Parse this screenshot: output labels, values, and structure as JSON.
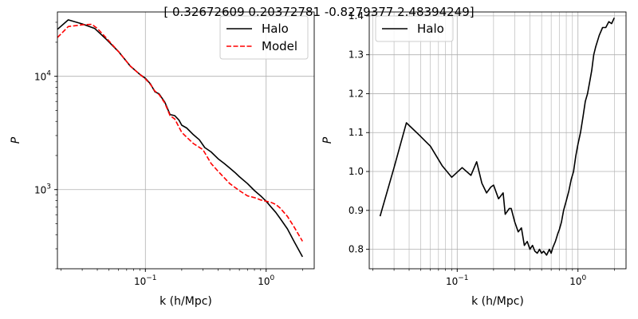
{
  "figure": {
    "suptitle": "[ 0.32672609  0.20372781 -0.8279377   2.48394249]"
  },
  "chart_data": [
    {
      "type": "line",
      "xlabel": "k (h/Mpc)",
      "ylabel": "P",
      "xscale": "log",
      "yscale": "log",
      "xlim": [
        0.0187,
        2.5
      ],
      "ylim": [
        200,
        37000
      ],
      "x_ticks": [
        {
          "value": 0.1,
          "base": "10",
          "exp": "−1"
        },
        {
          "value": 1,
          "base": "10",
          "exp": "0"
        }
      ],
      "y_ticks": [
        {
          "value": 1000,
          "base": "10",
          "exp": "3"
        },
        {
          "value": 10000,
          "base": "10",
          "exp": "4"
        }
      ],
      "grid": true,
      "legend": {
        "position": "top-right",
        "labels": [
          "Halo",
          "Model"
        ]
      },
      "series": [
        {
          "name": "Halo",
          "color": "#000000",
          "dash": "solid",
          "x": [
            0.0187,
            0.023,
            0.03,
            0.038,
            0.048,
            0.06,
            0.075,
            0.09,
            0.1,
            0.11,
            0.12,
            0.13,
            0.145,
            0.16,
            0.175,
            0.19,
            0.2,
            0.22,
            0.25,
            0.28,
            0.31,
            0.35,
            0.4,
            0.45,
            0.5,
            0.55,
            0.6,
            0.7,
            0.8,
            0.9,
            1.0,
            1.1,
            1.2,
            1.3,
            1.5,
            1.7,
            2.0
          ],
          "y": [
            26000,
            31500,
            29000,
            26500,
            21000,
            16500,
            12300,
            10400,
            9600,
            8600,
            7300,
            7000,
            5900,
            4600,
            4500,
            4100,
            3700,
            3500,
            3050,
            2750,
            2350,
            2150,
            1870,
            1700,
            1550,
            1420,
            1300,
            1130,
            980,
            880,
            790,
            700,
            630,
            560,
            450,
            350,
            255
          ]
        },
        {
          "name": "Model",
          "color": "#ff0000",
          "dash": "dashed",
          "x": [
            0.0187,
            0.023,
            0.03,
            0.036,
            0.04,
            0.048,
            0.06,
            0.075,
            0.09,
            0.1,
            0.11,
            0.12,
            0.13,
            0.145,
            0.16,
            0.175,
            0.2,
            0.22,
            0.25,
            0.3,
            0.35,
            0.4,
            0.5,
            0.6,
            0.7,
            0.8,
            0.9,
            1.0,
            1.1,
            1.2,
            1.3,
            1.5,
            1.7,
            2.0
          ],
          "y": [
            22000,
            27500,
            28500,
            28800,
            26500,
            21500,
            16500,
            12300,
            10400,
            9500,
            8500,
            7400,
            6900,
            5800,
            4500,
            4200,
            3200,
            2900,
            2550,
            2250,
            1700,
            1450,
            1130,
            980,
            880,
            850,
            810,
            790,
            770,
            740,
            690,
            580,
            470,
            350
          ]
        }
      ]
    },
    {
      "type": "line",
      "xlabel": "k (h/Mpc)",
      "ylabel": "P",
      "xscale": "log",
      "yscale": "linear",
      "xlim": [
        0.0187,
        2.5
      ],
      "ylim": [
        0.75,
        1.41
      ],
      "x_ticks": [
        {
          "value": 0.1,
          "base": "10",
          "exp": "−1"
        },
        {
          "value": 1,
          "base": "10",
          "exp": "0"
        }
      ],
      "y_ticks": [
        {
          "value": 0.8,
          "label": "0.8"
        },
        {
          "value": 0.9,
          "label": "0.9"
        },
        {
          "value": 1.0,
          "label": "1.0"
        },
        {
          "value": 1.1,
          "label": "1.1"
        },
        {
          "value": 1.2,
          "label": "1.2"
        },
        {
          "value": 1.3,
          "label": "1.3"
        },
        {
          "value": 1.4,
          "label": "1.4"
        }
      ],
      "grid": true,
      "legend": {
        "position": "top-left",
        "labels": [
          "Halo"
        ]
      },
      "series": [
        {
          "name": "Halo",
          "color": "#000000",
          "dash": "solid",
          "x": [
            0.023,
            0.03,
            0.038,
            0.048,
            0.06,
            0.075,
            0.09,
            0.11,
            0.13,
            0.145,
            0.16,
            0.175,
            0.19,
            0.2,
            0.22,
            0.24,
            0.25,
            0.27,
            0.28,
            0.3,
            0.32,
            0.34,
            0.36,
            0.38,
            0.4,
            0.42,
            0.44,
            0.46,
            0.48,
            0.5,
            0.52,
            0.55,
            0.58,
            0.6,
            0.62,
            0.65,
            0.68,
            0.7,
            0.73,
            0.76,
            0.8,
            0.84,
            0.88,
            0.92,
            0.96,
            1.0,
            1.05,
            1.1,
            1.15,
            1.2,
            1.25,
            1.3,
            1.35,
            1.4,
            1.5,
            1.6,
            1.7,
            1.8,
            1.9,
            2.0
          ],
          "y": [
            0.885,
            1.01,
            1.125,
            1.095,
            1.065,
            1.015,
            0.985,
            1.01,
            0.99,
            1.025,
            0.97,
            0.945,
            0.96,
            0.965,
            0.93,
            0.945,
            0.89,
            0.905,
            0.905,
            0.87,
            0.845,
            0.855,
            0.81,
            0.82,
            0.8,
            0.81,
            0.795,
            0.79,
            0.8,
            0.79,
            0.795,
            0.785,
            0.8,
            0.79,
            0.805,
            0.82,
            0.84,
            0.85,
            0.87,
            0.9,
            0.925,
            0.95,
            0.98,
            1.0,
            1.04,
            1.07,
            1.1,
            1.14,
            1.18,
            1.2,
            1.23,
            1.26,
            1.3,
            1.32,
            1.35,
            1.37,
            1.37,
            1.385,
            1.38,
            1.395
          ]
        }
      ]
    }
  ]
}
